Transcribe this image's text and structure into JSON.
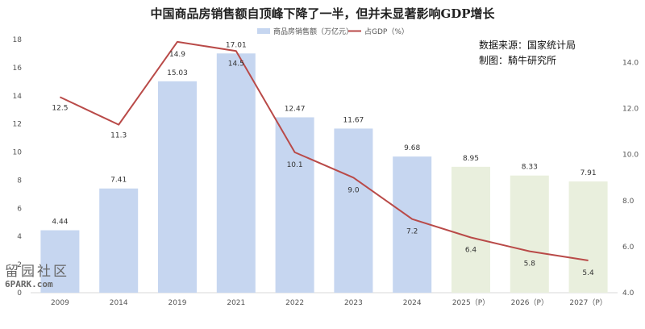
{
  "chart_data": {
    "type": "bar",
    "title": "中国商品房销售额自顶峰下降了一半，但并未显著影响GDP增长",
    "categories": [
      "2009",
      "2014",
      "2019",
      "2021",
      "2022",
      "2023",
      "2024",
      "2025（P）",
      "2026（P）",
      "2027（P）"
    ],
    "series": [
      {
        "name": "商品房销售额（万亿元）",
        "type": "bar",
        "axis": "left",
        "values": [
          4.44,
          7.41,
          15.03,
          17.01,
          12.47,
          11.67,
          9.68,
          8.95,
          8.33,
          7.91
        ],
        "labels": [
          "4.44",
          "7.41",
          "15.03",
          "17.01",
          "12.47",
          "11.67",
          "9.68",
          "8.95",
          "8.33",
          "7.91"
        ]
      },
      {
        "name": "占GDP（%）",
        "type": "line",
        "axis": "right",
        "values": [
          12.5,
          11.3,
          14.9,
          14.5,
          10.1,
          9.0,
          7.2,
          6.4,
          5.8,
          5.4
        ],
        "labels": [
          "12.5",
          "11.3",
          "14.9",
          "14.5",
          "10.1",
          "9.0",
          "7.2",
          "6.4",
          "5.8",
          "5.4"
        ]
      }
    ],
    "left_axis": {
      "ylim": [
        0,
        18
      ],
      "ticks": [
        "0",
        "2",
        "4",
        "6",
        "8",
        "10",
        "12",
        "14",
        "16",
        "18"
      ]
    },
    "right_axis": {
      "ylim": [
        4,
        15
      ],
      "ticks": [
        "4.0",
        "6.0",
        "8.0",
        "10.0",
        "12.0",
        "14.0"
      ]
    },
    "projected_from_index": 7,
    "grid": false,
    "legend_position": "top",
    "colors": {
      "actual_bar": "#c6d6f0",
      "projected_bar": "#e9efdd",
      "line": "#b94a48"
    },
    "annotations": [
      "数据来源：国家统计局",
      "制图：騎牛研究所"
    ]
  },
  "watermark": {
    "line1": "留园社区",
    "line2": "6PARK.com"
  }
}
